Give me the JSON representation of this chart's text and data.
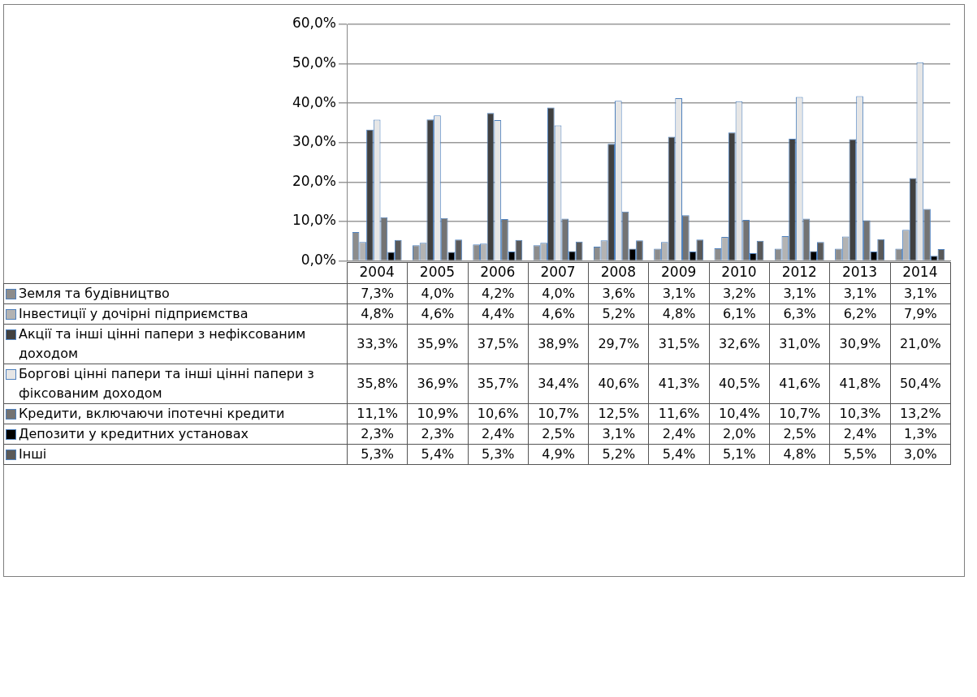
{
  "chart_data": {
    "type": "bar",
    "categories": [
      "2004",
      "2005",
      "2006",
      "2007",
      "2008",
      "2009",
      "2010",
      "2012",
      "2013",
      "2014"
    ],
    "series": [
      {
        "name": "Земля та будівництво",
        "color": "#8c8c8c",
        "values": [
          7.3,
          4.0,
          4.2,
          4.0,
          3.6,
          3.1,
          3.2,
          3.1,
          3.1,
          3.1
        ],
        "value_labels": [
          "7,3%",
          "4,0%",
          "4,2%",
          "4,0%",
          "3,6%",
          "3,1%",
          "3,2%",
          "3,1%",
          "3,1%",
          "3,1%"
        ]
      },
      {
        "name": "Інвестиції у дочірні підприємства",
        "color": "#b3b3b3",
        "values": [
          4.8,
          4.6,
          4.4,
          4.6,
          5.2,
          4.8,
          6.1,
          6.3,
          6.2,
          7.9
        ],
        "value_labels": [
          "4,8%",
          "4,6%",
          "4,4%",
          "4,6%",
          "5,2%",
          "4,8%",
          "6,1%",
          "6,3%",
          "6,2%",
          "7,9%"
        ]
      },
      {
        "name": "Акції та інші цінні папери з нефіксованим доходом",
        "color": "#404040",
        "values": [
          33.3,
          35.9,
          37.5,
          38.9,
          29.7,
          31.5,
          32.6,
          31.0,
          30.9,
          21.0
        ],
        "value_labels": [
          "33,3%",
          "35,9%",
          "37,5%",
          "38,9%",
          "29,7%",
          "31,5%",
          "32,6%",
          "31,0%",
          "30,9%",
          "21,0%"
        ]
      },
      {
        "name": "Боргові цінні папери та інші цінні папери з фіксованим доходом",
        "color": "#e6e6e6",
        "values": [
          35.8,
          36.9,
          35.7,
          34.4,
          40.6,
          41.3,
          40.5,
          41.6,
          41.8,
          50.4
        ],
        "value_labels": [
          "35,8%",
          "36,9%",
          "35,7%",
          "34,4%",
          "40,6%",
          "41,3%",
          "40,5%",
          "41,6%",
          "41,8%",
          "50,4%"
        ]
      },
      {
        "name": "Кредити, включаючи іпотечні кредити",
        "color": "#737373",
        "values": [
          11.1,
          10.9,
          10.6,
          10.7,
          12.5,
          11.6,
          10.4,
          10.7,
          10.3,
          13.2
        ],
        "value_labels": [
          "11,1%",
          "10,9%",
          "10,6%",
          "10,7%",
          "12,5%",
          "11,6%",
          "10,4%",
          "10,7%",
          "10,3%",
          "13,2%"
        ]
      },
      {
        "name": "Депозити у кредитних установах",
        "color": "#000000",
        "values": [
          2.3,
          2.3,
          2.4,
          2.5,
          3.1,
          2.4,
          2.0,
          2.5,
          2.4,
          1.3
        ],
        "value_labels": [
          "2,3%",
          "2,3%",
          "2,4%",
          "2,5%",
          "3,1%",
          "2,4%",
          "2,0%",
          "2,5%",
          "2,4%",
          "1,3%"
        ]
      },
      {
        "name": "Інші",
        "color": "#595959",
        "values": [
          5.3,
          5.4,
          5.3,
          4.9,
          5.2,
          5.4,
          5.1,
          4.8,
          5.5,
          3.0
        ],
        "value_labels": [
          "5,3%",
          "5,4%",
          "5,3%",
          "4,9%",
          "5,2%",
          "5,4%",
          "5,1%",
          "4,8%",
          "5,5%",
          "3,0%"
        ]
      }
    ],
    "ylim": [
      0,
      60
    ],
    "yticks": [
      {
        "value": 0,
        "label": "0,0%"
      },
      {
        "value": 10,
        "label": "10,0%"
      },
      {
        "value": 20,
        "label": "20,0%"
      },
      {
        "value": 30,
        "label": "30,0%"
      },
      {
        "value": 40,
        "label": "40,0%"
      },
      {
        "value": 50,
        "label": "50,0%"
      },
      {
        "value": 60,
        "label": "60,0%"
      }
    ],
    "grid": "y",
    "legend": "bottom left"
  }
}
